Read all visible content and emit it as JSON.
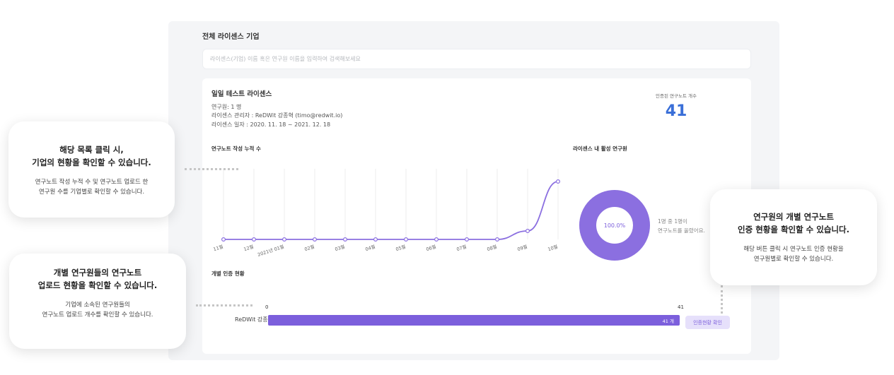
{
  "page": {
    "title": "전체 라이센스 기업",
    "search_placeholder": "라이센스(기업) 이름 혹은 연구원 이름을 입력하여 검색해보세요"
  },
  "license": {
    "name": "일일 테스트 라이센스",
    "researchers": "연구원: 1 명",
    "admin": "라이센스 관리자 : ReDWit 강종혁 (timo@redwit.io)",
    "period": "라이센스 일자 : 2020. 11. 18 ~ 2021. 12. 18",
    "count_label": "인증된 연구노트 개수",
    "count_value": "41"
  },
  "line_chart": {
    "title": "연구노트 작성 누적 수"
  },
  "chart_data": [
    {
      "type": "line",
      "title": "연구노트 작성 누적 수",
      "categories": [
        "11월",
        "12월",
        "2021년 01월",
        "02월",
        "03월",
        "04월",
        "05월",
        "06월",
        "07월",
        "08월",
        "09월",
        "10월"
      ],
      "series": [
        {
          "values": [
            0,
            0,
            0,
            0,
            0,
            0,
            0,
            0,
            0,
            0,
            6,
            41
          ]
        }
      ],
      "ylim": [
        0,
        50
      ],
      "color": "#8b6fe0",
      "grid": "vertical"
    },
    {
      "type": "pie",
      "title": "라이센스 내 활성 연구원",
      "values": [
        100
      ],
      "center_label": "100.0%",
      "color": "#8b6fe0"
    }
  ],
  "donut": {
    "title": "라이센스 내 활성 연구원",
    "center_label": "100.0%",
    "note_line1": "1명 중 1명이",
    "note_line2": "연구노트를 올렸어요."
  },
  "bar": {
    "title": "개별 인증 현황",
    "axis_min": "0",
    "axis_max": "41",
    "researcher": "ReDWit 강종혁",
    "value": 41,
    "max": 41,
    "value_label": "41 개",
    "button_label": "인증현황 확인"
  },
  "callouts": {
    "c1_title1": "해당 목록 클릭 시,",
    "c1_title2": "기업의 현황을 확인할 수 있습니다.",
    "c1_body1": "연구노트 작성 누적 수 및 연구노트 업로드 한",
    "c1_body2": "연구원 수를 기업별로 확인할 수 있습니다.",
    "c2_title1": "개별 연구원들의 연구노트",
    "c2_title2": "업로드 현황을 확인할 수 있습니다.",
    "c2_body1": "기업에 소속된 연구원들의",
    "c2_body2": "연구노트 업로드 개수를 확인할 수 있습니다.",
    "c3_title1": "연구원의 개별 연구노트",
    "c3_title2": "인증 현황을 확인할 수 있습니다.",
    "c3_body1": "해당 버튼 클릭 시 연구노트 인증 현황을",
    "c3_body2": "연구원별로 확인할 수 있습니다."
  }
}
